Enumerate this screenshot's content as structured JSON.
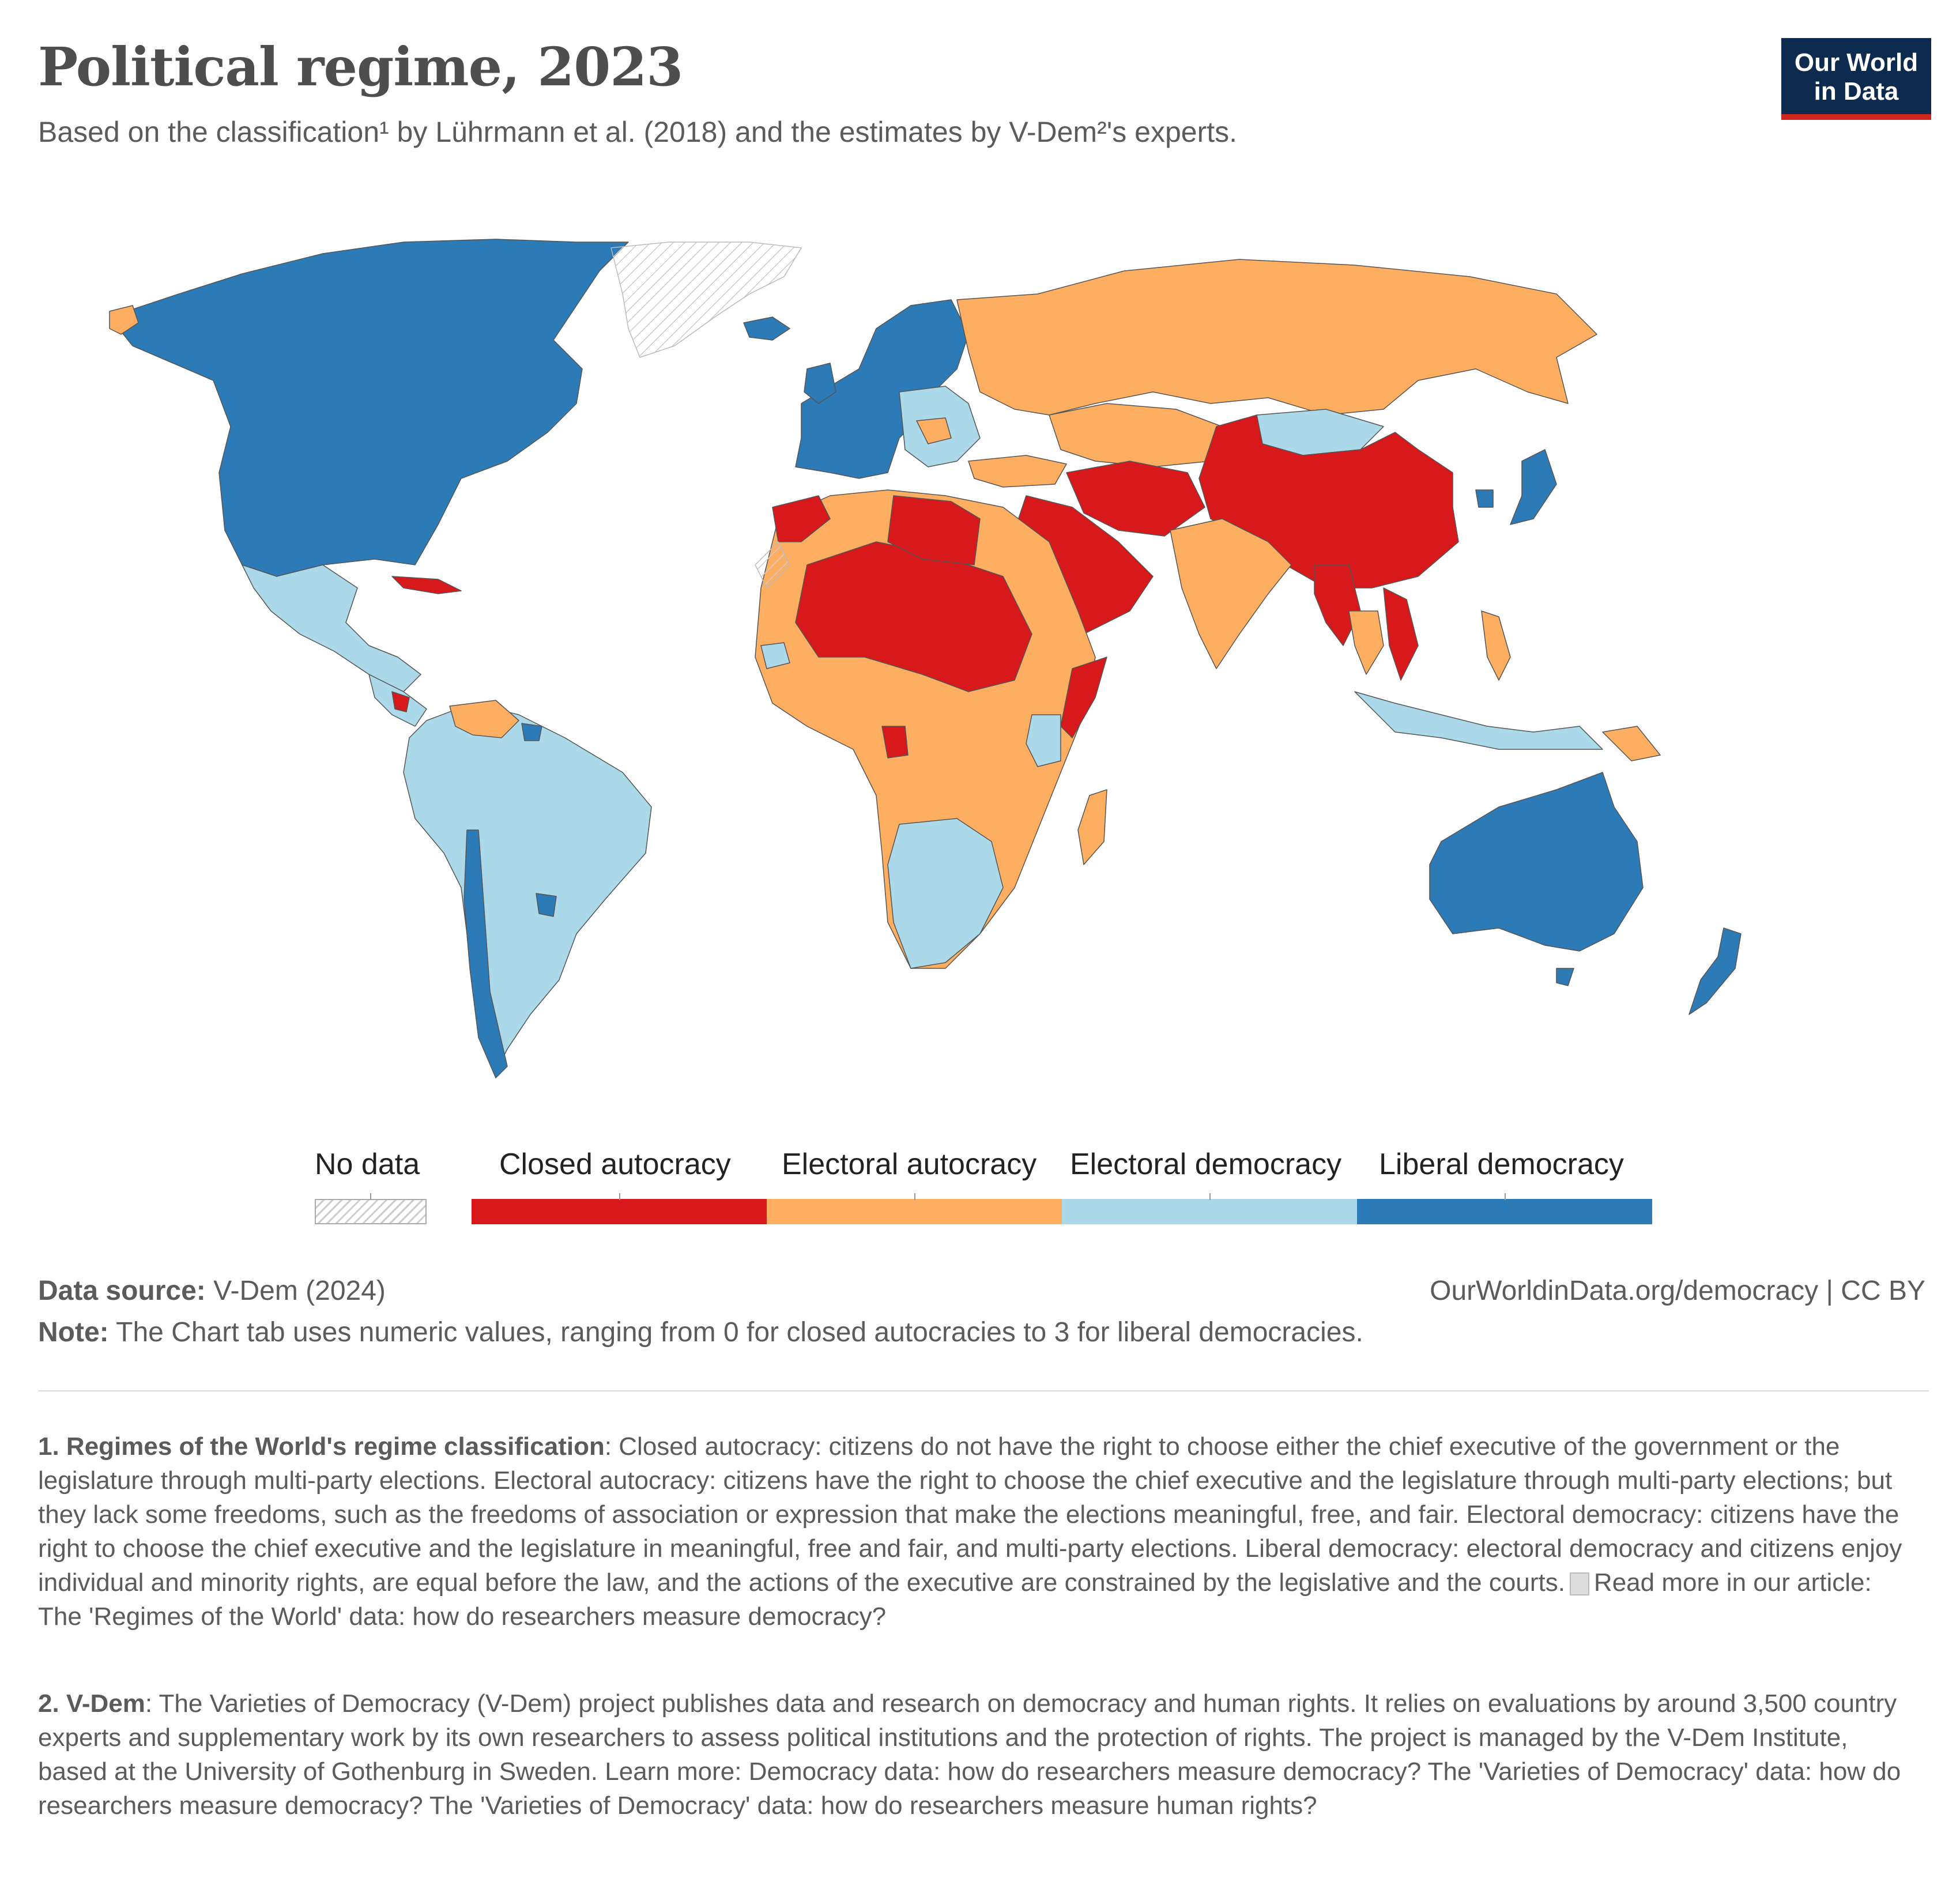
{
  "header": {
    "title": "Political regime, 2023",
    "subtitle": "Based on the classification¹ by Lührmann et al. (2018) and the estimates by V-Dem²'s experts.",
    "logo_line1": "Our World",
    "logo_line2": "in Data"
  },
  "colors": {
    "closed_autocracy": "#d7191c",
    "electoral_autocracy": "#fdae61",
    "electoral_democracy": "#abd9e9",
    "liberal_democracy": "#2c7bb6",
    "no_data": "#ffffff"
  },
  "legend": {
    "no_data": "No data",
    "categories": [
      "Closed autocracy",
      "Electoral autocracy",
      "Electoral democracy",
      "Liberal democracy"
    ]
  },
  "footer": {
    "source_label": "Data source:",
    "source_value": " V-Dem (2024)",
    "url": "OurWorldinData.org/democracy | CC BY",
    "note_label": "Note:",
    "note_value": " The Chart tab uses numeric values, ranging from 0 for closed autocracies to 3 for liberal democracies."
  },
  "footnotes": {
    "fn1_label": "1. Regimes of the World's regime classification",
    "fn1_text": ": Closed autocracy: citizens do not have the right to choose either the chief executive of the government or the legislature through multi-party elections. Electoral autocracy: citizens have the right to choose the chief executive and the legislature through multi-party elections; but they lack some freedoms, such as the freedoms of association or expression that make the elections meaningful, free, and fair. Electoral democracy: citizens have the right to choose the chief executive and the legislature in meaningful, free and fair, and multi-party elections. Liberal democracy: electoral democracy and citizens enjoy individual and minority rights, are equal before the law, and the actions of the executive are constrained by the legislative and the courts.",
    "fn1_link": "Read more in our article: The 'Regimes of the World' data: how do researchers measure democracy?",
    "fn2_label": "2. V-Dem",
    "fn2_text": ": The Varieties of Democracy (V-Dem) project publishes data and research on democracy and human rights. It relies on evaluations by around 3,500 country experts and supplementary work by its own researchers to assess political institutions and the protection of rights. The project is managed by the V-Dem Institute, based at the University of Gothenburg in Sweden. Learn more: Democracy data: how do researchers measure democracy? The 'Varieties of Democracy' data: how do researchers measure democracy? The 'Varieties of Democracy' data: how do researchers measure human rights?"
  }
}
